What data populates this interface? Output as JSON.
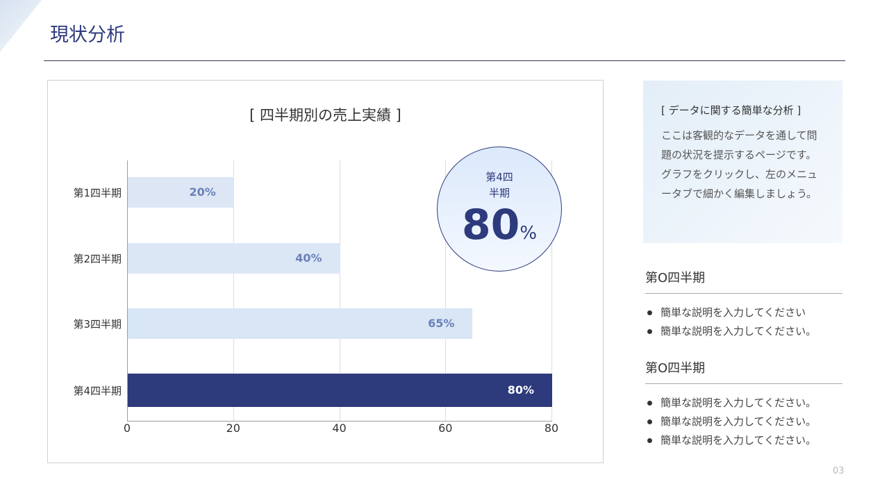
{
  "header": {
    "title": "現状分析"
  },
  "chart_data": {
    "type": "bar",
    "orientation": "horizontal",
    "title": "[ 四半期別の売上実績 ]",
    "categories": [
      "第1四半期",
      "第2四半期",
      "第3四半期",
      "第4四半期"
    ],
    "values": [
      20,
      40,
      65,
      80
    ],
    "value_labels": [
      "20%",
      "40%",
      "65%",
      "80%"
    ],
    "xticks": [
      "0",
      "20",
      "40",
      "60",
      "80"
    ],
    "xlim": [
      0,
      80
    ],
    "grid": true,
    "colors": [
      "#dde6f4",
      "#dce7f6",
      "#d8e6f5",
      "#2d3a7c"
    ],
    "label_colors": [
      "#6b80b8",
      "#6b80b8",
      "#6b80b8",
      "#ffffff"
    ]
  },
  "highlight": {
    "label_line1": "第4四",
    "label_line2": "半期",
    "value": "80",
    "unit": "%"
  },
  "note": {
    "title": "[ データに関する簡単な分析 ]",
    "body": "ここは客観的なデータを通して問題の状況を提示するページです。グラフをクリックし、左のメニュータブで細かく編集しましょう。"
  },
  "sections": [
    {
      "title": "第O四半期",
      "items": [
        "簡単な説明を入力してください",
        "簡単な説明を入力してください。"
      ]
    },
    {
      "title": "第O四半期",
      "items": [
        "簡単な説明を入力してください。",
        "簡単な説明を入力してください。",
        "簡単な説明を入力してください。"
      ]
    }
  ],
  "page_number": "03"
}
